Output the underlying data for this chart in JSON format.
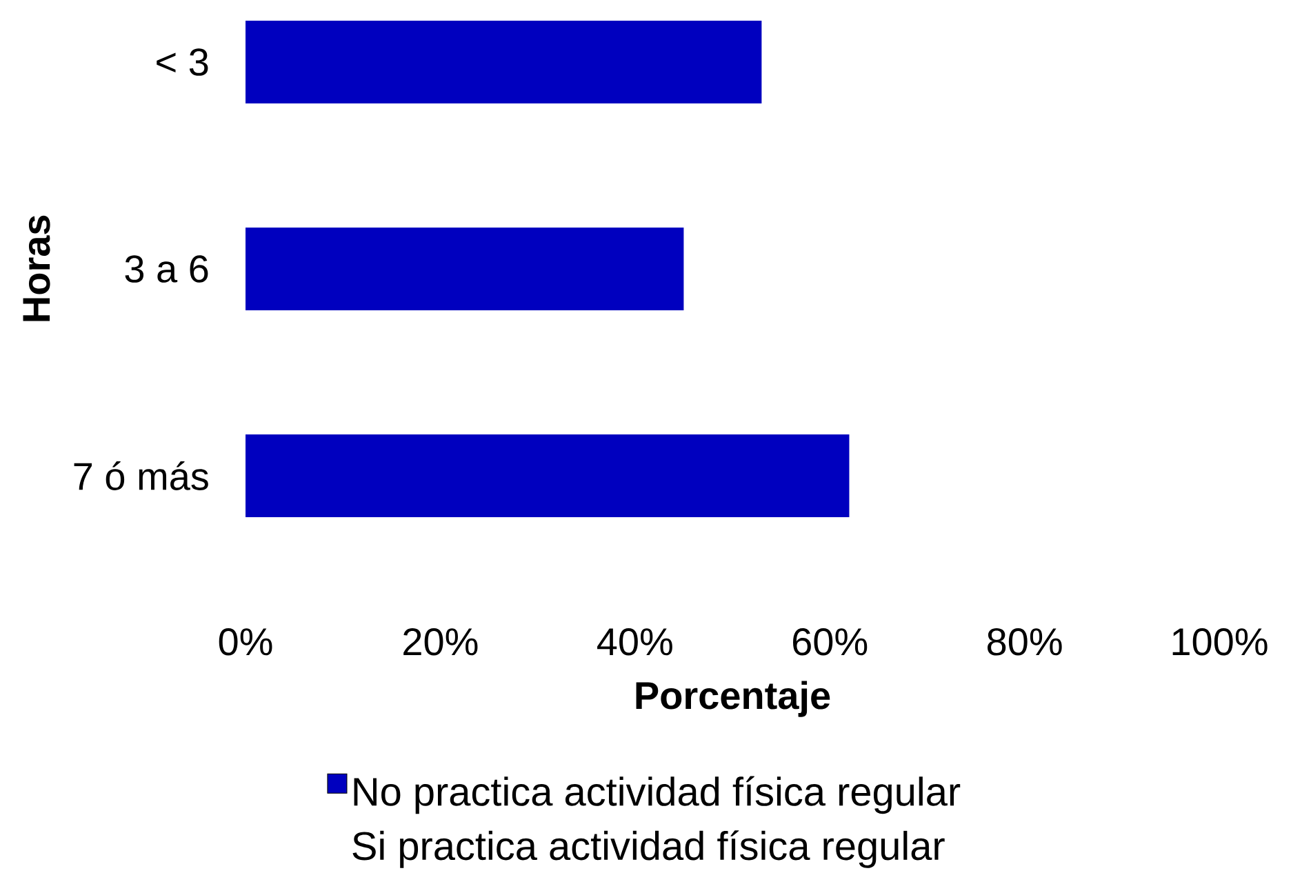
{
  "chart_data": {
    "type": "bar",
    "orientation": "horizontal",
    "xlabel": "Porcentaje",
    "ylabel": "Horas",
    "categories": [
      "< 3",
      "3 a 6",
      "7 ó más"
    ],
    "series": [
      {
        "name": "No practica actividad física regular",
        "color": "#0000bf",
        "values": [
          53,
          45,
          62
        ]
      },
      {
        "name": "Si practica actividad física regular",
        "values": [
          null,
          null,
          null
        ]
      }
    ],
    "xlim": [
      0,
      100
    ],
    "xticks": [
      {
        "value": 0,
        "label": "0%"
      },
      {
        "value": 20,
        "label": "20%"
      },
      {
        "value": 40,
        "label": "40%"
      },
      {
        "value": 60,
        "label": "60%"
      },
      {
        "value": 80,
        "label": "80%"
      },
      {
        "value": 100,
        "label": "100%"
      }
    ],
    "legend": "bottom"
  }
}
